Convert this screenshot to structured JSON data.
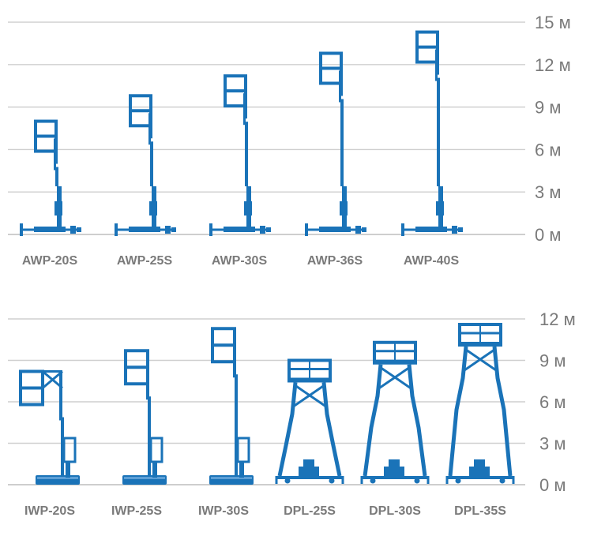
{
  "colors": {
    "machine": "#1a73b8",
    "grid": "#cfcfcf",
    "text": "#7a7a7a"
  },
  "top_chart": {
    "unit": "м",
    "axis_ticks": [
      "15 м",
      "12 м",
      "9 м",
      "6 м",
      "3 м",
      "0 м"
    ],
    "models": [
      {
        "label": "AWP-20S",
        "height_m": 8.0
      },
      {
        "label": "AWP-25S",
        "height_m": 9.8
      },
      {
        "label": "AWP-30S",
        "height_m": 11.2
      },
      {
        "label": "AWP-36S",
        "height_m": 12.8
      },
      {
        "label": "AWP-40S",
        "height_m": 14.3
      }
    ]
  },
  "bottom_chart": {
    "unit": "м",
    "axis_ticks": [
      "12 м",
      "9 м",
      "6 м",
      "3 м",
      "0 м"
    ],
    "models": [
      {
        "label": "IWP-20S",
        "type": "mast",
        "height_m": 8.2
      },
      {
        "label": "IWP-25S",
        "type": "mast",
        "height_m": 9.7
      },
      {
        "label": "IWP-30S",
        "type": "mast",
        "height_m": 11.3
      },
      {
        "label": "DPL-25S",
        "type": "tower",
        "height_m": 9.0
      },
      {
        "label": "DPL-30S",
        "type": "tower",
        "height_m": 10.3
      },
      {
        "label": "DPL-35S",
        "type": "tower",
        "height_m": 11.6
      }
    ]
  }
}
